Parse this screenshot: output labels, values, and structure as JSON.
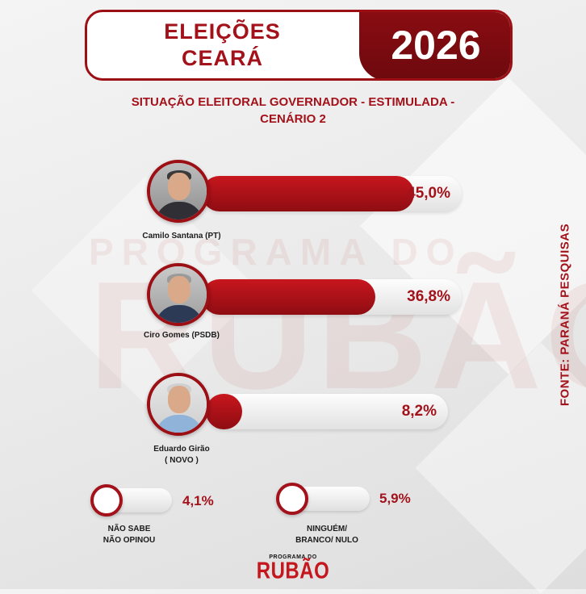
{
  "header": {
    "title_line1": "ELEIÇÕES",
    "title_line2": "CEARÁ",
    "year": "2026"
  },
  "subtitle": {
    "line1": "SITUAÇÃO ELEITORAL GOVERNADOR - ESTIMULADA -",
    "line2": "CENÁRIO 2"
  },
  "source": "FONTE: PARANÁ PESQUISAS",
  "watermark": {
    "top": "PROGRAMA DO",
    "big": "RUBÃO"
  },
  "logo": {
    "top": "PROGRAMA DO",
    "main": "RUBÃO"
  },
  "colors": {
    "accent": "#a3121a",
    "dark_red": "#6d0a0e",
    "track": "#e6e6e6"
  },
  "chart_data": {
    "type": "bar",
    "title": "SITUAÇÃO ELEITORAL GOVERNADOR - ESTIMULADA - CENÁRIO 2",
    "unit": "%",
    "categories": [
      "Camilo Santana (PT)",
      "Ciro Gomes (PSDB)",
      "Eduardo Girão ( NOVO )",
      "NÃO SABE NÃO OPINOU",
      "NINGUÉM/ BRANCO/ NULO"
    ],
    "values": [
      45.0,
      36.8,
      8.2,
      4.1,
      5.9
    ],
    "value_labels": [
      "45,0%",
      "36,8%",
      "8,2%",
      "4,1%",
      "5,9%"
    ],
    "candidates": [
      {
        "name": "Camilo Santana (PT)",
        "name_line2": "",
        "value": 45.0,
        "label": "45,0%"
      },
      {
        "name": "Ciro Gomes (PSDB)",
        "name_line2": "",
        "value": 36.8,
        "label": "36,8%"
      },
      {
        "name": "Eduardo Girão",
        "name_line2": "( NOVO )",
        "value": 8.2,
        "label": "8,2%"
      }
    ],
    "others": [
      {
        "line1": "NÃO SABE",
        "line2": "NÃO OPINOU",
        "value": 4.1,
        "label": "4,1%"
      },
      {
        "line1": "NINGUÉM/",
        "line2": "BRANCO/ NULO",
        "value": 5.9,
        "label": "5,9%"
      }
    ],
    "legend": "none",
    "grid": false
  }
}
